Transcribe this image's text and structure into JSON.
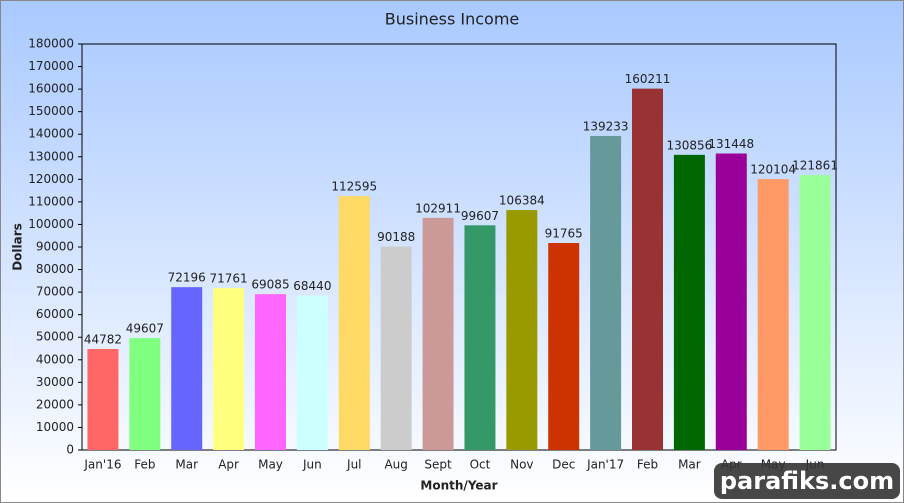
{
  "chart_data": {
    "type": "bar",
    "title": "Business Income",
    "x_label": "Month/Year",
    "y_label": "Dollars",
    "categories": [
      "Jan'16",
      "Feb",
      "Mar",
      "Apr",
      "May",
      "Jun",
      "Jul",
      "Aug",
      "Sept",
      "Oct",
      "Nov",
      "Dec",
      "Jan'17",
      "Feb",
      "Mar",
      "Apr",
      "May",
      "Jun"
    ],
    "values": [
      44782,
      49607,
      72196,
      71761,
      69085,
      68440,
      112595,
      90188,
      102911,
      99607,
      106384,
      91765,
      139233,
      160211,
      130856,
      131448,
      120104,
      121861
    ],
    "colors": [
      "#ff6666",
      "#80ff80",
      "#6666ff",
      "#ffff80",
      "#ff66ff",
      "#ccffff",
      "#ffd966",
      "#cccccc",
      "#cc9999",
      "#339966",
      "#999900",
      "#cc3300",
      "#669999",
      "#993333",
      "#006600",
      "#990099",
      "#ff9966",
      "#99ff99"
    ],
    "ylim": [
      0,
      180000
    ],
    "yticks": [
      0,
      10000,
      20000,
      30000,
      40000,
      50000,
      60000,
      70000,
      80000,
      90000,
      100000,
      110000,
      120000,
      130000,
      140000,
      150000,
      160000,
      170000,
      180000
    ]
  },
  "watermark": "parafiks.com"
}
